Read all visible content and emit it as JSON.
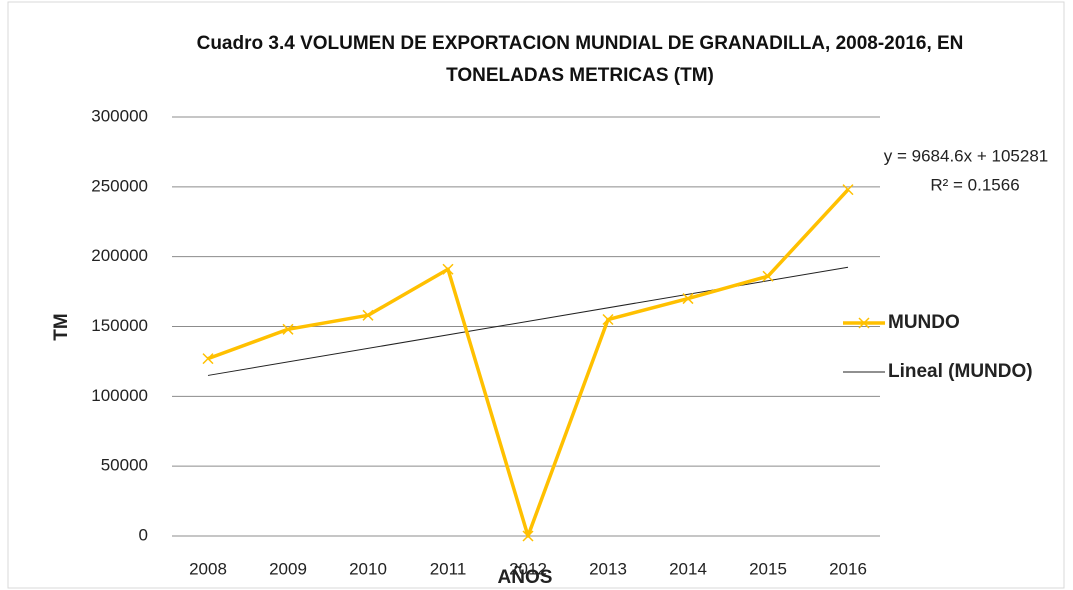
{
  "chart_data": {
    "type": "line",
    "title": "Cuadro 3.4 VOLUMEN DE EXPORTACION MUNDIAL DE GRANADILLA, 2008-2016, EN TONELADAS METRICAS (TM)",
    "x_label": "AÑOS",
    "y_label": "TM",
    "categories": [
      "2008",
      "2009",
      "2010",
      "2011",
      "2012",
      "2013",
      "2014",
      "2015",
      "2016"
    ],
    "series": [
      {
        "name": "MUNDO",
        "color": "#FFC000",
        "values": [
          127000,
          148000,
          158000,
          191000,
          0,
          155000,
          170000,
          186000,
          248000
        ]
      }
    ],
    "trendline": {
      "name": "Lineal (MUNDO)",
      "color": "#222222",
      "slope": 9684.6,
      "intercept": 105281,
      "equation": "y = 9684.6x + 105281",
      "r2_label": "R² = 0.1566"
    },
    "ylim": [
      0,
      300000
    ],
    "yticks": [
      0,
      50000,
      100000,
      150000,
      200000,
      250000,
      300000
    ],
    "grid": true,
    "legend": "right"
  }
}
